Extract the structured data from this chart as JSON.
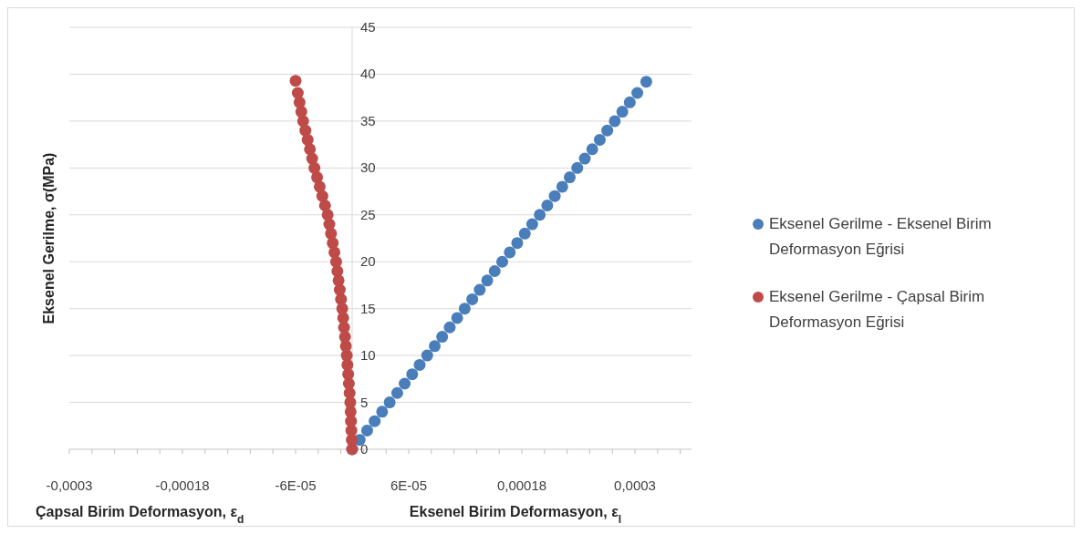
{
  "chart_data": {
    "type": "scatter",
    "ylabel": "Eksenel Gerilme, σ(MPa)",
    "xlabel": "Eksenel Birim Deformasyon, ε$_{l}$",
    "annotations": [
      "Çapsal Birim Deformasyon, ε$_{d}$"
    ],
    "xlim": [
      -0.0003,
      0.00036
    ],
    "xticks": [
      {
        "value": -0.0003,
        "label": "-0,0003"
      },
      {
        "value": -0.000276,
        "label": null
      },
      {
        "value": -0.000252,
        "label": null
      },
      {
        "value": -0.000228,
        "label": null
      },
      {
        "value": -0.000204,
        "label": null
      },
      {
        "value": -0.00018,
        "label": "-0,00018"
      },
      {
        "value": -0.000156,
        "label": null
      },
      {
        "value": -0.000132,
        "label": null
      },
      {
        "value": -0.000108,
        "label": null
      },
      {
        "value": -8.4e-05,
        "label": null
      },
      {
        "value": -6e-05,
        "label": "-6E-05"
      },
      {
        "value": -3.6e-05,
        "label": null
      },
      {
        "value": -1.2e-05,
        "label": null
      },
      {
        "value": 1.2e-05,
        "label": null
      },
      {
        "value": 3.6e-05,
        "label": null
      },
      {
        "value": 6e-05,
        "label": "6E-05"
      },
      {
        "value": 8.4e-05,
        "label": null
      },
      {
        "value": 0.000108,
        "label": null
      },
      {
        "value": 0.000132,
        "label": null
      },
      {
        "value": 0.000156,
        "label": null
      },
      {
        "value": 0.00018,
        "label": "0,00018"
      },
      {
        "value": 0.000204,
        "label": null
      },
      {
        "value": 0.000228,
        "label": null
      },
      {
        "value": 0.000252,
        "label": null
      },
      {
        "value": 0.000276,
        "label": null
      },
      {
        "value": 0.0003,
        "label": "0,0003"
      },
      {
        "value": 0.000324,
        "label": null
      },
      {
        "value": 0.000348,
        "label": null
      }
    ],
    "ylim": [
      0,
      45
    ],
    "yticks": [
      0,
      5,
      10,
      15,
      20,
      25,
      30,
      35,
      40,
      45
    ],
    "grid": "y",
    "legend": "right",
    "marker": "circle",
    "series": [
      {
        "name": "Eksenel Gerilme - Eksenel Birim Deformasyon Eğrisi",
        "color": "#4a7ebb",
        "x": [
          0,
          8e-06,
          1.59e-05,
          2.39e-05,
          3.18e-05,
          3.98e-05,
          4.78e-05,
          5.57e-05,
          6.37e-05,
          7.16e-05,
          7.96e-05,
          8.76e-05,
          9.55e-05,
          0.0001035,
          0.0001114,
          0.0001194,
          0.0001274,
          0.0001353,
          0.0001433,
          0.0001512,
          0.0001592,
          0.0001672,
          0.0001751,
          0.0001831,
          0.000191,
          0.000199,
          0.000207,
          0.0002149,
          0.0002229,
          0.0002308,
          0.0002388,
          0.0002468,
          0.0002547,
          0.0002627,
          0.0002706,
          0.0002786,
          0.0002866,
          0.0002945,
          0.0003025,
          0.000312
        ],
        "values": [
          0,
          1,
          2,
          3,
          4,
          5,
          6,
          7,
          8,
          9,
          10,
          11,
          12,
          13,
          14,
          15,
          16,
          17,
          18,
          19,
          20,
          21,
          22,
          23,
          24,
          25,
          26,
          27,
          28,
          29,
          30,
          31,
          32,
          33,
          34,
          35,
          36,
          37,
          38,
          39.2
        ]
      },
      {
        "name": "Eksenel Gerilme - Çapsal Birim Deformasyon Eğrisi",
        "color": "#be4b48",
        "x": [
          0,
          -4e-07,
          -8e-07,
          -1.2e-06,
          -1.6e-06,
          -2e-06,
          -2.7e-06,
          -3.5e-06,
          -4.2e-06,
          -5e-06,
          -5.7e-06,
          -6.7e-06,
          -7.6e-06,
          -8.6e-06,
          -9.5e-06,
          -1.05e-05,
          -1.18e-05,
          -1.31e-05,
          -1.44e-05,
          -1.57e-05,
          -1.7e-05,
          -1.88e-05,
          -2.06e-05,
          -2.24e-05,
          -2.42e-05,
          -2.6e-05,
          -2.88e-05,
          -3.16e-05,
          -3.44e-05,
          -3.72e-05,
          -4e-05,
          -4.24e-05,
          -4.48e-05,
          -4.72e-05,
          -4.96e-05,
          -5.2e-05,
          -5.39e-05,
          -5.58e-05,
          -5.77e-05,
          -6e-05
        ],
        "values": [
          0,
          1,
          2,
          3,
          4,
          5,
          6,
          7,
          8,
          9,
          10,
          11,
          12,
          13,
          14,
          15,
          16,
          17,
          18,
          19,
          20,
          21,
          22,
          23,
          24,
          25,
          26,
          27,
          28,
          29,
          30,
          31,
          32,
          33,
          34,
          35,
          36,
          37,
          38,
          39.3
        ]
      }
    ]
  }
}
